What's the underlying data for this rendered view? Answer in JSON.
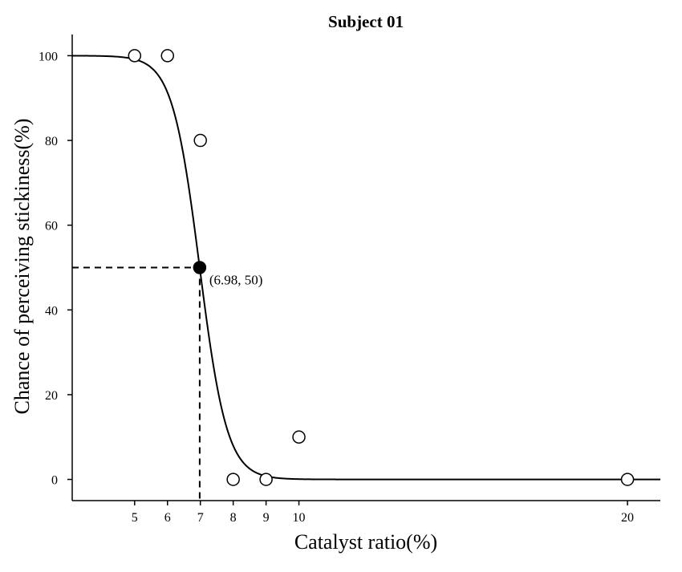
{
  "chart_data": {
    "type": "scatter",
    "title": "Subject 01",
    "xlabel": "Catalyst ratio(%)",
    "ylabel": "Chance of perceiving stickiness(%)",
    "xlim": [
      3.1,
      21.0
    ],
    "ylim": [
      -5,
      105
    ],
    "x_ticks": [
      5,
      6,
      7,
      8,
      9,
      10,
      20
    ],
    "y_ticks": [
      0,
      20,
      40,
      60,
      80,
      100
    ],
    "grid": false,
    "series": [
      {
        "marker": "open-circle",
        "points": [
          {
            "x": 5,
            "y": 100
          },
          {
            "x": 6,
            "y": 100
          },
          {
            "x": 7,
            "y": 80
          },
          {
            "x": 8,
            "y": 0
          },
          {
            "x": 9,
            "y": 0
          },
          {
            "x": 10,
            "y": 10
          },
          {
            "x": 20,
            "y": 0
          }
        ]
      }
    ],
    "fit_curve": {
      "type": "logistic",
      "x50": 6.98,
      "slope": 2.4,
      "x_range": [
        3.1,
        21.0
      ]
    },
    "threshold": {
      "x": 6.98,
      "y": 50,
      "marker": "filled-circle",
      "label": "(6.98, 50)",
      "guide_lines": "dashed"
    }
  }
}
